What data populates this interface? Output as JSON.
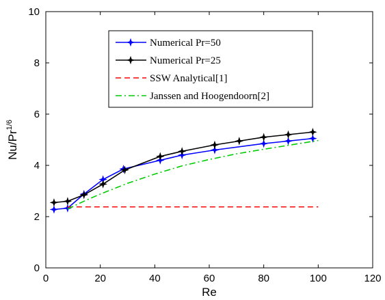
{
  "chart_data": {
    "type": "line",
    "xlabel": "Re",
    "ylabel": "Nu/Pr",
    "ylabel_sup": "1/6",
    "xlim": [
      0,
      120
    ],
    "ylim": [
      0,
      10
    ],
    "xticks": [
      0,
      20,
      40,
      60,
      80,
      100,
      120
    ],
    "yticks": [
      0,
      2,
      4,
      6,
      8,
      10
    ],
    "grid": false,
    "legend_position": "upper-center",
    "series": [
      {
        "name": "Numerical Pr=50",
        "color": "#0000ff",
        "style": "solid-star-markers",
        "x": [
          3,
          8,
          14,
          21,
          28.5,
          42,
          50,
          62,
          80,
          89,
          98
        ],
        "y": [
          2.28,
          2.33,
          2.88,
          3.45,
          3.86,
          4.2,
          4.4,
          4.6,
          4.85,
          4.95,
          5.05
        ]
      },
      {
        "name": "Numerical Pr=25",
        "color": "#000000",
        "style": "solid-star-markers",
        "x": [
          3,
          8,
          14,
          21,
          29,
          42,
          50,
          62,
          71,
          80,
          89,
          98
        ],
        "y": [
          2.55,
          2.6,
          2.85,
          3.27,
          3.82,
          4.35,
          4.55,
          4.8,
          4.95,
          5.1,
          5.2,
          5.3
        ]
      },
      {
        "name": "SSW Analytical[1]",
        "color": "#ff0000",
        "style": "dashed",
        "x": [
          8,
          100
        ],
        "y": [
          2.38,
          2.38
        ]
      },
      {
        "name": "Janssen and Hoogendoorn[2]",
        "color": "#00cc00",
        "style": "dash-dot",
        "x": [
          8,
          10,
          15,
          20,
          30,
          40,
          50,
          60,
          70,
          80,
          90,
          100
        ],
        "y": [
          2.3,
          2.4,
          2.65,
          2.88,
          3.3,
          3.66,
          3.98,
          4.23,
          4.45,
          4.63,
          4.8,
          4.97
        ]
      }
    ]
  }
}
